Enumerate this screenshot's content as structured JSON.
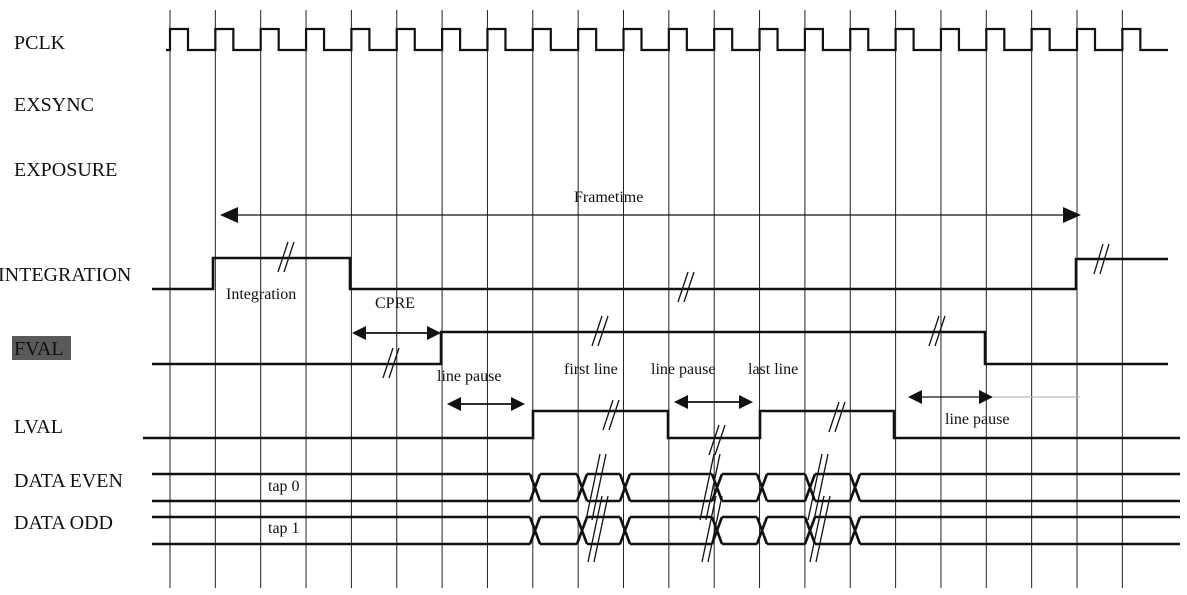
{
  "signals": {
    "pclk": "PCLK",
    "exsync": "EXSYNC",
    "exposure": "EXPOSURE",
    "integration": "INTEGRATION",
    "fval": "FVAL",
    "lval": "LVAL",
    "data_even": "DATA EVEN",
    "data_odd": "DATA ODD"
  },
  "annotations": {
    "frametime": "Frametime",
    "integration": "Integration",
    "cpre": "CPRE",
    "line_pause_1": "line pause",
    "first_line": "first line",
    "line_pause_2": "line pause",
    "last_line": "last line",
    "line_pause_3": "line  pause",
    "tap0": "tap 0",
    "tap1": "tap 1"
  },
  "style": {
    "fval_highlight": "#5a5a5a",
    "line_color": "#111111"
  }
}
